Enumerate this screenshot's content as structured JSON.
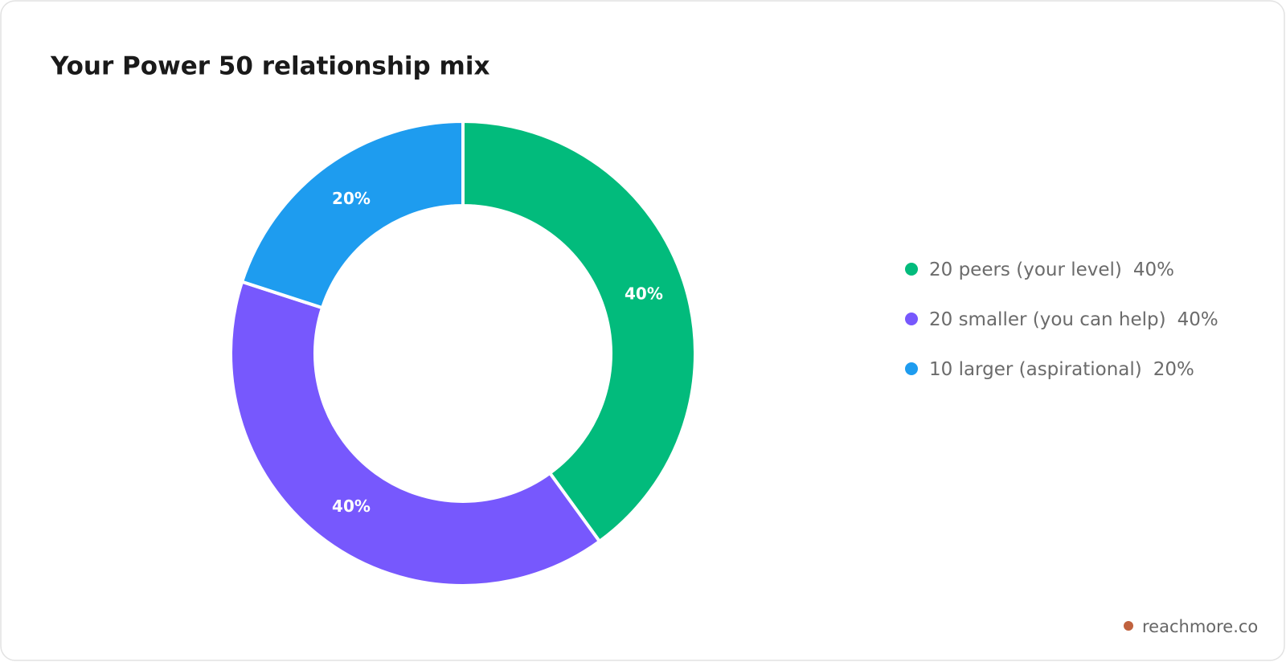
{
  "chart_data": {
    "type": "donut",
    "title": "Your Power 50 relationship mix",
    "categories": [
      "20 peers (your level)",
      "20 smaller (you can help)",
      "10 larger (aspirational)"
    ],
    "values": [
      40,
      40,
      20
    ],
    "value_labels": [
      "40%",
      "40%",
      "20%"
    ],
    "colors": [
      "#02bb7c",
      "#7758fd",
      "#1e9cef"
    ],
    "legend": "right"
  },
  "footer": {
    "text": "reachmore.co"
  }
}
